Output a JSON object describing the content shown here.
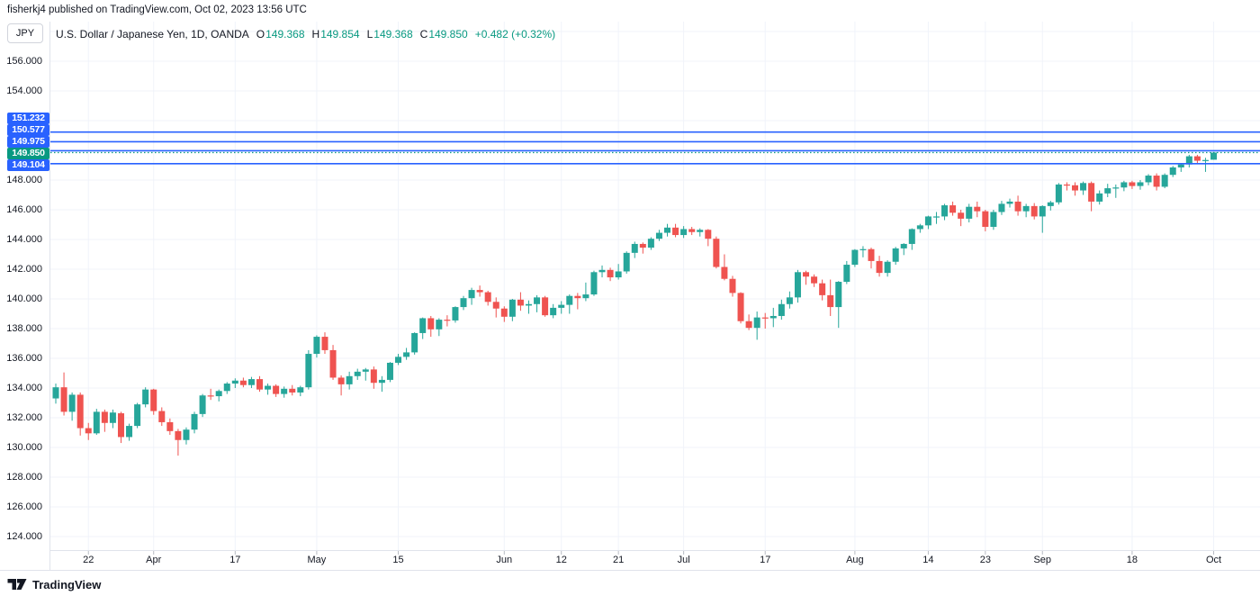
{
  "publisher": {
    "text": "fisherkj4 published on TradingView.com, Oct 02, 2023 13:56 UTC"
  },
  "symbol_bar": {
    "currency_button": "JPY",
    "title": "U.S. Dollar / Japanese Yen, 1D, OANDA",
    "ohlc": {
      "o_label": "O",
      "o": "149.368",
      "h_label": "H",
      "h": "149.854",
      "l_label": "L",
      "l": "149.368",
      "c_label": "C",
      "c": "149.850",
      "change": "+0.482 (+0.32%)"
    }
  },
  "footer": {
    "logo_text": "TradingView"
  },
  "colors": {
    "up": "#26A69A",
    "down": "#EF5350",
    "accent_blue": "#2962FF",
    "accent_green": "#089981",
    "grid": "#F0F3FA",
    "border": "#E0E3EB",
    "tick": "#B8BCC4",
    "text": "#131722"
  },
  "chart_data": {
    "type": "candlestick",
    "title": "U.S. Dollar / Japanese Yen, 1D, OANDA",
    "symbol": "USD/JPY",
    "interval": "1D",
    "exchange": "OANDA",
    "ylim": [
      123.0,
      157.5
    ],
    "grid": true,
    "y_gridlines": [
      158,
      156,
      154,
      152,
      150,
      148,
      146,
      144,
      142,
      140,
      138,
      136,
      134,
      132,
      130,
      128,
      126,
      124
    ],
    "y_tick_labels": [
      {
        "price": 156,
        "label": "156.000"
      },
      {
        "price": 154,
        "label": "154.000"
      },
      {
        "price": 148,
        "label": "148.000"
      },
      {
        "price": 146,
        "label": "146.000"
      },
      {
        "price": 144,
        "label": "144.000"
      },
      {
        "price": 142,
        "label": "142.000"
      },
      {
        "price": 140,
        "label": "140.000"
      },
      {
        "price": 138,
        "label": "138.000"
      },
      {
        "price": 136,
        "label": "136.000"
      },
      {
        "price": 134,
        "label": "134.000"
      },
      {
        "price": 132,
        "label": "132.000"
      },
      {
        "price": 130,
        "label": "130.000"
      },
      {
        "price": 128,
        "label": "128.000"
      },
      {
        "price": 126,
        "label": "126.000"
      },
      {
        "price": 124,
        "label": "124.000"
      }
    ],
    "x_ticks": [
      {
        "index": 4,
        "label": "22"
      },
      {
        "index": 12,
        "label": "Apr"
      },
      {
        "index": 22,
        "label": "17"
      },
      {
        "index": 32,
        "label": "May"
      },
      {
        "index": 42,
        "label": "15"
      },
      {
        "index": 55,
        "label": "Jun"
      },
      {
        "index": 62,
        "label": "12"
      },
      {
        "index": 69,
        "label": "21"
      },
      {
        "index": 77,
        "label": "Jul"
      },
      {
        "index": 87,
        "label": "17"
      },
      {
        "index": 98,
        "label": "Aug"
      },
      {
        "index": 107,
        "label": "14"
      },
      {
        "index": 114,
        "label": "23"
      },
      {
        "index": 121,
        "label": "Sep"
      },
      {
        "index": 132,
        "label": "18"
      },
      {
        "index": 142,
        "label": "Oct"
      }
    ],
    "price_lines": [
      {
        "price": 151.232,
        "label": "151.232",
        "style": "solid",
        "color": "#2962FF"
      },
      {
        "price": 150.577,
        "label": "150.577",
        "style": "solid",
        "color": "#2962FF"
      },
      {
        "price": 149.975,
        "label": "149.975",
        "style": "solid",
        "color": "#2962FF"
      },
      {
        "price": 149.85,
        "label": "149.850",
        "style": "dotted",
        "color": "#089981"
      },
      {
        "price": 149.104,
        "label": "149.104",
        "style": "solid",
        "color": "#2962FF"
      }
    ],
    "candles": [
      [
        133.3,
        134.3,
        132.95,
        134.05
      ],
      [
        134.05,
        135.05,
        132.15,
        132.4
      ],
      [
        132.4,
        133.7,
        131.8,
        133.55
      ],
      [
        133.55,
        133.7,
        130.8,
        131.3
      ],
      [
        131.3,
        131.65,
        130.5,
        130.95
      ],
      [
        130.95,
        132.6,
        130.85,
        132.4
      ],
      [
        132.4,
        132.55,
        131.05,
        131.65
      ],
      [
        131.65,
        132.55,
        131.3,
        132.35
      ],
      [
        132.3,
        132.4,
        130.3,
        130.7
      ],
      [
        130.7,
        131.6,
        130.45,
        131.45
      ],
      [
        131.45,
        133.0,
        131.3,
        132.9
      ],
      [
        132.9,
        134.05,
        132.7,
        133.9
      ],
      [
        133.9,
        133.95,
        132.2,
        132.45
      ],
      [
        132.45,
        132.7,
        131.45,
        131.7
      ],
      [
        131.7,
        131.95,
        130.85,
        131.1
      ],
      [
        131.1,
        131.25,
        129.45,
        130.5
      ],
      [
        130.5,
        131.35,
        130.2,
        131.2
      ],
      [
        131.2,
        132.4,
        130.95,
        132.25
      ],
      [
        132.25,
        133.6,
        132.05,
        133.5
      ],
      [
        133.5,
        133.95,
        133.2,
        133.45
      ],
      [
        133.45,
        133.9,
        133.1,
        133.8
      ],
      [
        133.8,
        134.4,
        133.6,
        134.3
      ],
      [
        134.3,
        134.65,
        134.0,
        134.5
      ],
      [
        134.5,
        134.7,
        134.05,
        134.2
      ],
      [
        134.2,
        134.75,
        134.0,
        134.6
      ],
      [
        134.6,
        134.8,
        133.75,
        133.9
      ],
      [
        133.9,
        134.3,
        133.55,
        134.15
      ],
      [
        134.15,
        134.25,
        133.4,
        133.6
      ],
      [
        133.6,
        134.1,
        133.35,
        133.95
      ],
      [
        133.95,
        134.2,
        133.5,
        133.7
      ],
      [
        133.7,
        134.15,
        133.45,
        134.05
      ],
      [
        134.05,
        136.55,
        133.9,
        136.3
      ],
      [
        136.3,
        137.55,
        136.05,
        137.45
      ],
      [
        137.45,
        137.75,
        136.3,
        136.55
      ],
      [
        136.55,
        136.9,
        134.55,
        134.7
      ],
      [
        134.7,
        134.85,
        133.5,
        134.25
      ],
      [
        134.25,
        135.1,
        133.9,
        134.8
      ],
      [
        134.8,
        135.3,
        134.55,
        135.1
      ],
      [
        135.1,
        135.35,
        134.5,
        135.25
      ],
      [
        135.25,
        135.45,
        133.95,
        134.35
      ],
      [
        134.35,
        134.8,
        133.75,
        134.55
      ],
      [
        134.55,
        135.75,
        134.4,
        135.7
      ],
      [
        135.7,
        136.3,
        135.55,
        136.1
      ],
      [
        136.1,
        136.7,
        135.9,
        136.4
      ],
      [
        136.4,
        137.75,
        136.25,
        137.7
      ],
      [
        137.7,
        138.75,
        137.3,
        138.7
      ],
      [
        138.7,
        138.85,
        137.45,
        137.95
      ],
      [
        137.95,
        138.7,
        137.5,
        138.6
      ],
      [
        138.6,
        138.9,
        138.15,
        138.55
      ],
      [
        138.55,
        139.5,
        138.4,
        139.45
      ],
      [
        139.45,
        140.2,
        139.25,
        140.05
      ],
      [
        140.05,
        140.75,
        139.6,
        140.6
      ],
      [
        140.6,
        140.9,
        140.15,
        140.45
      ],
      [
        140.45,
        140.55,
        139.55,
        139.8
      ],
      [
        139.8,
        140.1,
        138.75,
        139.35
      ],
      [
        139.35,
        139.5,
        138.45,
        138.8
      ],
      [
        138.8,
        140.0,
        138.5,
        139.95
      ],
      [
        139.95,
        140.45,
        139.2,
        139.55
      ],
      [
        139.55,
        139.9,
        139.0,
        139.65
      ],
      [
        139.65,
        140.25,
        139.1,
        140.1
      ],
      [
        140.1,
        140.2,
        138.8,
        138.9
      ],
      [
        138.9,
        139.65,
        138.7,
        139.4
      ],
      [
        139.4,
        139.85,
        139.0,
        139.6
      ],
      [
        139.6,
        140.3,
        139.0,
        140.2
      ],
      [
        140.2,
        140.4,
        139.3,
        140.05
      ],
      [
        140.05,
        141.1,
        139.85,
        140.3
      ],
      [
        140.3,
        141.9,
        140.2,
        141.8
      ],
      [
        141.8,
        142.25,
        141.45,
        141.95
      ],
      [
        141.95,
        142.1,
        141.2,
        141.45
      ],
      [
        141.45,
        142.35,
        141.3,
        141.85
      ],
      [
        141.85,
        143.2,
        141.7,
        143.1
      ],
      [
        143.1,
        143.85,
        142.75,
        143.7
      ],
      [
        143.7,
        143.8,
        143.05,
        143.45
      ],
      [
        143.45,
        144.15,
        143.3,
        144.05
      ],
      [
        144.05,
        144.65,
        143.9,
        144.45
      ],
      [
        144.45,
        145.05,
        144.2,
        144.8
      ],
      [
        144.8,
        145.05,
        144.15,
        144.3
      ],
      [
        144.3,
        144.9,
        144.1,
        144.7
      ],
      [
        144.7,
        144.85,
        144.3,
        144.5
      ],
      [
        144.5,
        144.75,
        144.2,
        144.65
      ],
      [
        144.65,
        144.7,
        143.55,
        144.05
      ],
      [
        144.05,
        144.2,
        142.05,
        142.15
      ],
      [
        142.15,
        143.0,
        141.25,
        141.35
      ],
      [
        141.35,
        141.55,
        140.15,
        140.4
      ],
      [
        140.4,
        140.45,
        138.35,
        138.5
      ],
      [
        138.5,
        138.95,
        137.9,
        138.05
      ],
      [
        138.05,
        139.15,
        137.25,
        138.75
      ],
      [
        138.75,
        139.05,
        138.0,
        138.7
      ],
      [
        138.7,
        139.4,
        138.1,
        138.85
      ],
      [
        138.85,
        139.95,
        138.6,
        139.65
      ],
      [
        139.65,
        140.5,
        139.35,
        140.1
      ],
      [
        140.1,
        141.95,
        139.75,
        141.8
      ],
      [
        141.8,
        141.9,
        140.95,
        141.5
      ],
      [
        141.5,
        141.65,
        140.8,
        141.05
      ],
      [
        141.05,
        141.3,
        139.9,
        140.25
      ],
      [
        140.25,
        141.3,
        138.85,
        139.45
      ],
      [
        139.45,
        141.2,
        138.05,
        141.15
      ],
      [
        141.15,
        142.55,
        141.0,
        142.3
      ],
      [
        142.3,
        143.35,
        142.15,
        143.3
      ],
      [
        143.3,
        143.55,
        142.8,
        143.35
      ],
      [
        143.35,
        143.45,
        142.05,
        142.55
      ],
      [
        142.55,
        142.9,
        141.5,
        141.75
      ],
      [
        141.75,
        142.6,
        141.5,
        142.5
      ],
      [
        142.5,
        143.5,
        142.3,
        143.4
      ],
      [
        143.4,
        143.75,
        142.95,
        143.7
      ],
      [
        143.7,
        144.75,
        143.3,
        144.7
      ],
      [
        144.7,
        145.05,
        144.45,
        144.95
      ],
      [
        144.95,
        145.6,
        144.7,
        145.55
      ],
      [
        145.55,
        145.85,
        145.05,
        145.55
      ],
      [
        145.55,
        146.4,
        145.3,
        146.3
      ],
      [
        146.3,
        146.55,
        145.6,
        145.8
      ],
      [
        145.8,
        146.0,
        144.9,
        145.4
      ],
      [
        145.4,
        146.4,
        145.15,
        146.2
      ],
      [
        146.2,
        146.55,
        145.5,
        145.9
      ],
      [
        145.9,
        146.0,
        144.55,
        144.85
      ],
      [
        144.85,
        146.0,
        144.65,
        145.85
      ],
      [
        145.85,
        146.6,
        145.65,
        146.4
      ],
      [
        146.4,
        146.75,
        146.15,
        146.55
      ],
      [
        146.55,
        146.95,
        145.6,
        145.9
      ],
      [
        145.9,
        146.4,
        145.5,
        146.25
      ],
      [
        146.25,
        146.45,
        145.35,
        145.55
      ],
      [
        145.55,
        146.3,
        144.45,
        146.25
      ],
      [
        146.25,
        146.6,
        145.95,
        146.5
      ],
      [
        146.5,
        147.8,
        146.35,
        147.7
      ],
      [
        147.7,
        147.85,
        147.3,
        147.65
      ],
      [
        147.65,
        147.85,
        146.95,
        147.3
      ],
      [
        147.3,
        147.9,
        147.0,
        147.8
      ],
      [
        147.8,
        147.9,
        145.9,
        146.55
      ],
      [
        146.55,
        147.3,
        146.35,
        147.1
      ],
      [
        147.1,
        147.75,
        146.85,
        147.45
      ],
      [
        147.45,
        147.7,
        146.8,
        147.5
      ],
      [
        147.5,
        147.95,
        147.25,
        147.85
      ],
      [
        147.85,
        147.95,
        147.4,
        147.6
      ],
      [
        147.6,
        148.0,
        147.35,
        147.85
      ],
      [
        147.85,
        148.4,
        147.65,
        148.3
      ],
      [
        148.3,
        148.45,
        147.3,
        147.55
      ],
      [
        147.55,
        148.45,
        147.45,
        148.35
      ],
      [
        148.35,
        148.95,
        148.2,
        148.85
      ],
      [
        148.85,
        149.15,
        148.55,
        149.05
      ],
      [
        149.05,
        149.7,
        148.85,
        149.6
      ],
      [
        149.6,
        149.7,
        149.1,
        149.3
      ],
      [
        149.3,
        149.5,
        148.55,
        149.35
      ],
      [
        149.37,
        149.854,
        149.368,
        149.85
      ]
    ]
  }
}
